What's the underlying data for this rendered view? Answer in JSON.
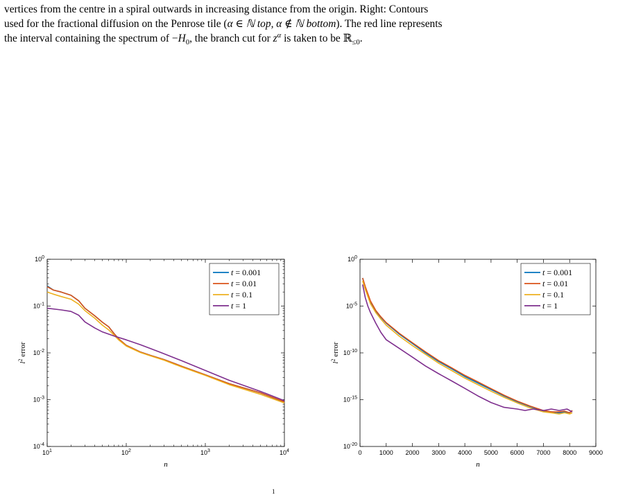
{
  "caption": {
    "line1": "vertices from the centre in a spiral outwards in increasing distance from the origin. Right: Contours",
    "line2_a": "used for the fractional diffusion on the Penrose tile (",
    "line2_b": "α ∈ ℕ top, α ∉ ℕ bottom",
    "line2_c": "). The red line represents",
    "line3_a": "the interval containing the spectrum of −",
    "line3_h": "H",
    "line3_h_sub": "0",
    "line3_b": ", the branch cut for ",
    "line3_z": "z",
    "line3_z_sup": "α",
    "line3_c": " is taken to be ℝ",
    "line3_r_sub": "≤0",
    "line3_d": "."
  },
  "footer_mark": "1",
  "colors": {
    "t0001": "#0072BD",
    "t001": "#D95319",
    "t01": "#EDB120",
    "t1": "#7E2F8E",
    "axis": "#000000"
  },
  "chart_data": [
    {
      "type": "line",
      "x_scale": "log",
      "y_scale": "log",
      "xlim": [
        10,
        10000
      ],
      "ylim": [
        0.0001,
        1
      ],
      "xlabel": "n",
      "ylabel": "l² error",
      "ylabel_base": "l",
      "ylabel_sup": "2",
      "ylabel_rest": " error",
      "xticks": [
        10,
        100,
        1000,
        10000
      ],
      "xtick_labels": [
        [
          "10",
          "1"
        ],
        [
          "10",
          "2"
        ],
        [
          "10",
          "3"
        ],
        [
          "10",
          "4"
        ]
      ],
      "yticks": [
        0.0001,
        0.001,
        0.01,
        0.1,
        1
      ],
      "ytick_labels": [
        [
          "10",
          "-4"
        ],
        [
          "10",
          "-3"
        ],
        [
          "10",
          "-2"
        ],
        [
          "10",
          "-1"
        ],
        [
          "10",
          "0"
        ]
      ],
      "legend": "top-right",
      "grid": false,
      "series": [
        {
          "name": "t = 0.001",
          "color_key": "t0001",
          "x": [
            10,
            12,
            15,
            20,
            25,
            30,
            40,
            50,
            60,
            70,
            80,
            100,
            150,
            200,
            300,
            500,
            1000,
            2000,
            5000,
            10000
          ],
          "y": [
            0.27,
            0.22,
            0.2,
            0.17,
            0.13,
            0.09,
            0.062,
            0.045,
            0.036,
            0.026,
            0.02,
            0.0145,
            0.0105,
            0.0089,
            0.0072,
            0.0052,
            0.0034,
            0.0022,
            0.0014,
            0.00088
          ]
        },
        {
          "name": "t = 0.01",
          "color_key": "t001",
          "x": [
            10,
            12,
            15,
            20,
            25,
            30,
            40,
            50,
            60,
            70,
            80,
            100,
            150,
            200,
            300,
            500,
            1000,
            2000,
            5000,
            10000
          ],
          "y": [
            0.26,
            0.22,
            0.2,
            0.17,
            0.13,
            0.09,
            0.062,
            0.045,
            0.036,
            0.026,
            0.02,
            0.0145,
            0.0105,
            0.0089,
            0.0072,
            0.0052,
            0.0034,
            0.0022,
            0.0014,
            0.0009
          ]
        },
        {
          "name": "t = 0.1",
          "color_key": "t01",
          "x": [
            10,
            12,
            15,
            20,
            25,
            30,
            40,
            50,
            60,
            70,
            80,
            100,
            150,
            200,
            300,
            500,
            1000,
            2000,
            5000,
            10000
          ],
          "y": [
            0.2,
            0.18,
            0.16,
            0.14,
            0.11,
            0.08,
            0.055,
            0.039,
            0.031,
            0.024,
            0.019,
            0.014,
            0.0102,
            0.0087,
            0.007,
            0.005,
            0.0033,
            0.0021,
            0.0013,
            0.00085
          ]
        },
        {
          "name": "t = 1",
          "color_key": "t1",
          "x": [
            10,
            15,
            20,
            25,
            30,
            40,
            50,
            70,
            100,
            150,
            200,
            300,
            500,
            1000,
            2000,
            5000,
            10000
          ],
          "y": [
            0.09,
            0.083,
            0.077,
            0.064,
            0.046,
            0.034,
            0.028,
            0.023,
            0.019,
            0.015,
            0.0125,
            0.0096,
            0.0068,
            0.0042,
            0.0026,
            0.0015,
            0.00095
          ]
        }
      ]
    },
    {
      "type": "line",
      "x_scale": "linear",
      "y_scale": "log",
      "xlim": [
        0,
        9000
      ],
      "ylim": [
        1e-20,
        1
      ],
      "xlabel": "n",
      "ylabel": "l² error",
      "ylabel_base": "l",
      "ylabel_sup": "2",
      "ylabel_rest": " error",
      "xticks": [
        0,
        1000,
        2000,
        3000,
        4000,
        5000,
        6000,
        7000,
        8000,
        9000
      ],
      "xtick_labels": [
        [
          "0",
          ""
        ],
        [
          "1000",
          ""
        ],
        [
          "2000",
          ""
        ],
        [
          "3000",
          ""
        ],
        [
          "4000",
          ""
        ],
        [
          "5000",
          ""
        ],
        [
          "6000",
          ""
        ],
        [
          "7000",
          ""
        ],
        [
          "8000",
          ""
        ],
        [
          "9000",
          ""
        ]
      ],
      "yticks": [
        1e-20,
        1e-15,
        1e-10,
        1e-05,
        1
      ],
      "ytick_labels": [
        [
          "10",
          "-20"
        ],
        [
          "10",
          "-15"
        ],
        [
          "10",
          "-10"
        ],
        [
          "10",
          "-5"
        ],
        [
          "10",
          "0"
        ]
      ],
      "legend": "top-right",
      "grid": false,
      "series": [
        {
          "name": "t = 0.001",
          "color_key": "t0001",
          "x": [
            100,
            200,
            400,
            600,
            800,
            1000,
            1500,
            2000,
            2500,
            3000,
            3500,
            4000,
            4500,
            5000,
            5500,
            6000,
            6500,
            7000,
            7300,
            7600,
            7800,
            8000,
            8100
          ],
          "y": [
            0.01,
            0.001,
            3e-05,
            3e-06,
            6e-07,
            1.5e-07,
            1e-08,
            1e-09,
            1e-10,
            1.2e-11,
            2e-12,
            3e-13,
            6e-14,
            1.2e-14,
            2.5e-15,
            6e-16,
            1.8e-16,
            6e-17,
            5e-17,
            4e-17,
            5e-17,
            4e-17,
            7e-17
          ]
        },
        {
          "name": "t = 0.01",
          "color_key": "t001",
          "x": [
            100,
            200,
            400,
            600,
            800,
            1000,
            1500,
            2000,
            2500,
            3000,
            3500,
            4000,
            4500,
            5000,
            5500,
            6000,
            6500,
            7000,
            7300,
            7600,
            7800,
            8000,
            8100
          ],
          "y": [
            0.01,
            0.0012,
            3.5e-05,
            3.5e-06,
            7e-07,
            1.7e-07,
            1.2e-08,
            1.2e-09,
            1.3e-10,
            1.5e-11,
            2.5e-12,
            4e-13,
            8e-14,
            1.5e-14,
            3e-15,
            7e-16,
            2e-16,
            7e-17,
            5e-17,
            5e-17,
            6e-17,
            4e-17,
            7e-17
          ]
        },
        {
          "name": "t = 0.1",
          "color_key": "t01",
          "x": [
            100,
            200,
            400,
            600,
            800,
            1000,
            1500,
            2000,
            2500,
            3000,
            3500,
            4000,
            4500,
            5000,
            5500,
            6000,
            6500,
            7000,
            7300,
            7600,
            7800,
            8000,
            8100
          ],
          "y": [
            0.005,
            0.0006,
            1.8e-05,
            2e-06,
            4e-07,
            9e-08,
            6e-09,
            6e-10,
            7e-11,
            8e-12,
            1.3e-12,
            2e-13,
            4e-14,
            8e-15,
            1.8e-15,
            4.5e-16,
            1.3e-16,
            5e-17,
            4e-17,
            3e-17,
            4e-17,
            3e-17,
            4e-17
          ]
        },
        {
          "name": "t = 1",
          "color_key": "t1",
          "x": [
            100,
            200,
            300,
            400,
            600,
            800,
            1000,
            1500,
            2000,
            2500,
            3000,
            3500,
            4000,
            4500,
            5000,
            5500,
            6000,
            6300,
            6600,
            7000,
            7300,
            7600,
            7900,
            8100
          ],
          "y": [
            0.002,
            8e-05,
            1e-05,
            2e-06,
            1.5e-07,
            1.5e-08,
            2.5e-09,
            3e-10,
            3.5e-11,
            4e-12,
            6e-13,
            1e-13,
            1.6e-14,
            2.5e-15,
            5e-16,
            1.5e-16,
            1e-16,
            7e-17,
            1e-16,
            7e-17,
            1e-16,
            7e-17,
            1e-16,
            5e-17
          ]
        }
      ]
    }
  ]
}
